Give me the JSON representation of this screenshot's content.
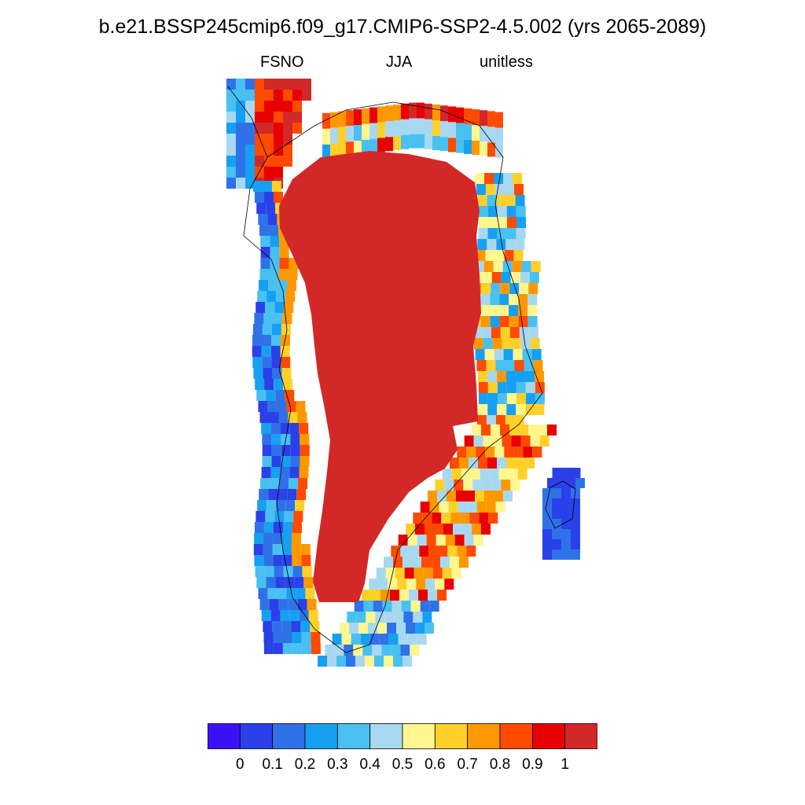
{
  "title": "b.e21.BSSP245cmip6.f09_g17.CMIP6-SSP2-4.5.002 (yrs 2065-2089)",
  "subtitle": {
    "left": "FSNO",
    "center": "JJA",
    "right": "unitless"
  },
  "colorbar": {
    "colors": [
      "#3a10f5",
      "#2a40e8",
      "#2f72e8",
      "#16a0f2",
      "#48c0f2",
      "#a8d8f0",
      "#fff68f",
      "#ffd02a",
      "#ff9800",
      "#ff4a00",
      "#e80000",
      "#d22828"
    ],
    "tick_labels": [
      "0",
      "0.1",
      "0.2",
      "0.3",
      "0.4",
      "0.5",
      "0.6",
      "0.7",
      "0.8",
      "0.9",
      "1"
    ]
  },
  "map_data": {
    "variable": "FSNO",
    "season": "JJA",
    "units": "unitless",
    "range": [
      0,
      1
    ],
    "region": "Greenland",
    "interior_value": 1.0,
    "west_coast_typical": 0.1,
    "east_coast_typical": 0.55,
    "iceland_corner_typical": 0.1
  }
}
